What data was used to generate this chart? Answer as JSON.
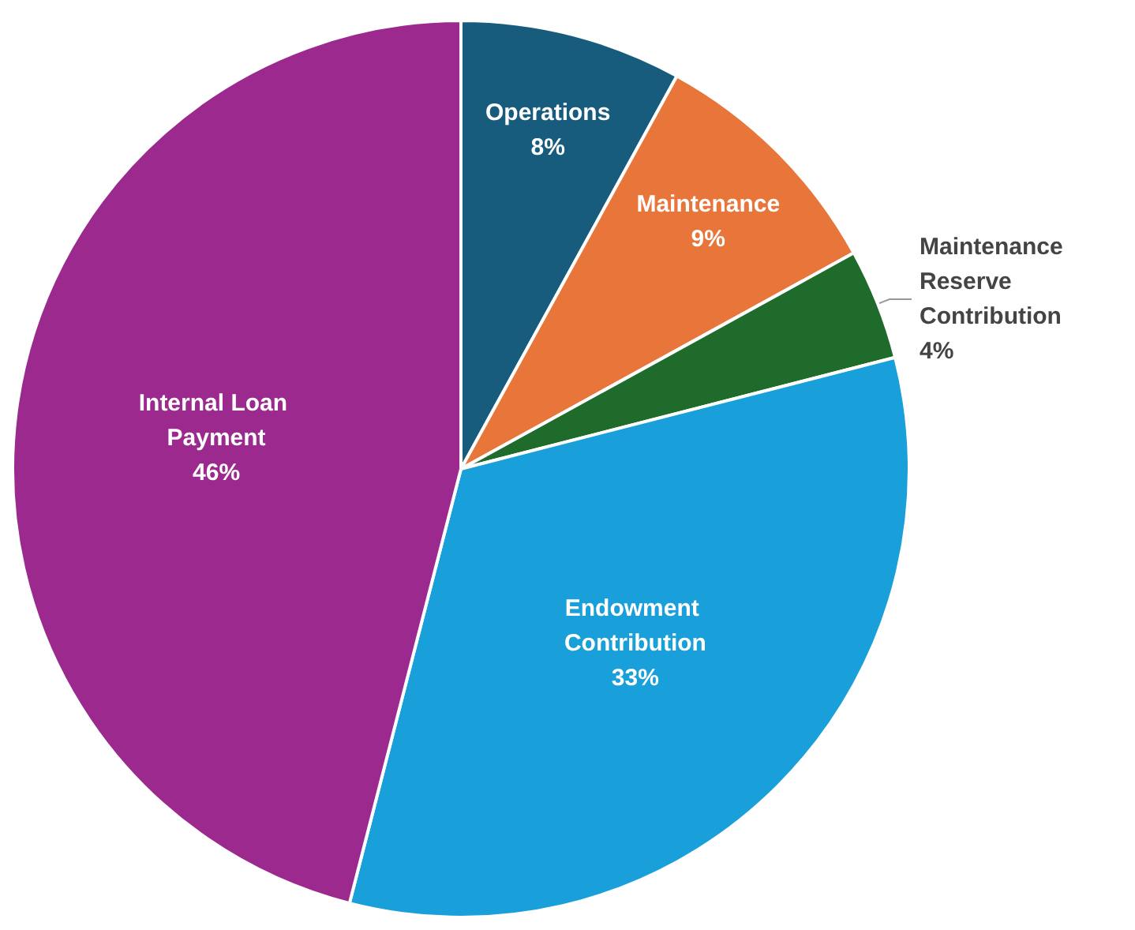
{
  "chart_data": {
    "type": "pie",
    "categories": [
      "Operations",
      "Maintenance",
      "Maintenance Reserve Contribution",
      "Endowment Contribution",
      "Internal Loan Payment"
    ],
    "values": [
      8,
      9,
      4,
      33,
      46
    ],
    "colors": [
      "#175b7d",
      "#e8763a",
      "#1e6b2c",
      "#199fd9",
      "#9c2a8e"
    ],
    "value_labels": [
      "8%",
      "9%",
      "4%",
      "33%",
      "46%"
    ]
  }
}
